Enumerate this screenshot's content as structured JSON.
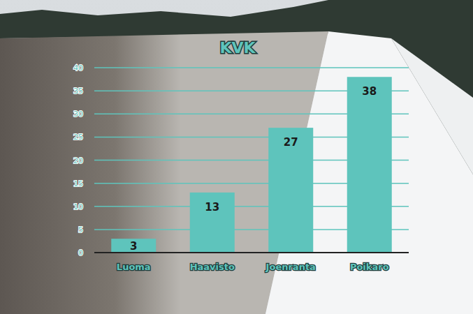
{
  "chart_data": {
    "type": "bar",
    "title": "KVK",
    "categories": [
      "Luoma",
      "Haavisto",
      "Joenranta",
      "Poikaro"
    ],
    "values": [
      3,
      13,
      27,
      38
    ],
    "color": "#5ec4bc",
    "ylim": [
      0,
      40
    ],
    "yticks": [
      0,
      5,
      10,
      15,
      20,
      25,
      30,
      35,
      40
    ],
    "grid": true,
    "data_labels": true
  }
}
